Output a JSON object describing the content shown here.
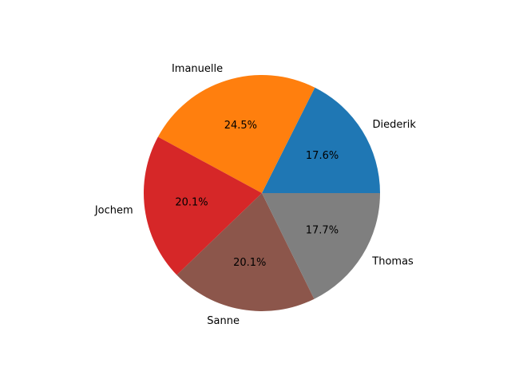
{
  "chart_data": {
    "type": "pie",
    "title": "",
    "start_angle_deg": 0,
    "direction": "counterclockwise",
    "slices": [
      {
        "label": "Diederik",
        "value": 17.6,
        "pct_label": "17.6%",
        "color": "#1f77b4"
      },
      {
        "label": "Imanuelle",
        "value": 24.5,
        "pct_label": "24.5%",
        "color": "#ff7f0e"
      },
      {
        "label": "Jochem",
        "value": 20.1,
        "pct_label": "20.1%",
        "color": "#d62728"
      },
      {
        "label": "Sanne",
        "value": 20.1,
        "pct_label": "20.1%",
        "color": "#8c564b"
      },
      {
        "label": "Thomas",
        "value": 17.7,
        "pct_label": "17.7%",
        "color": "#7f7f7f"
      }
    ]
  }
}
